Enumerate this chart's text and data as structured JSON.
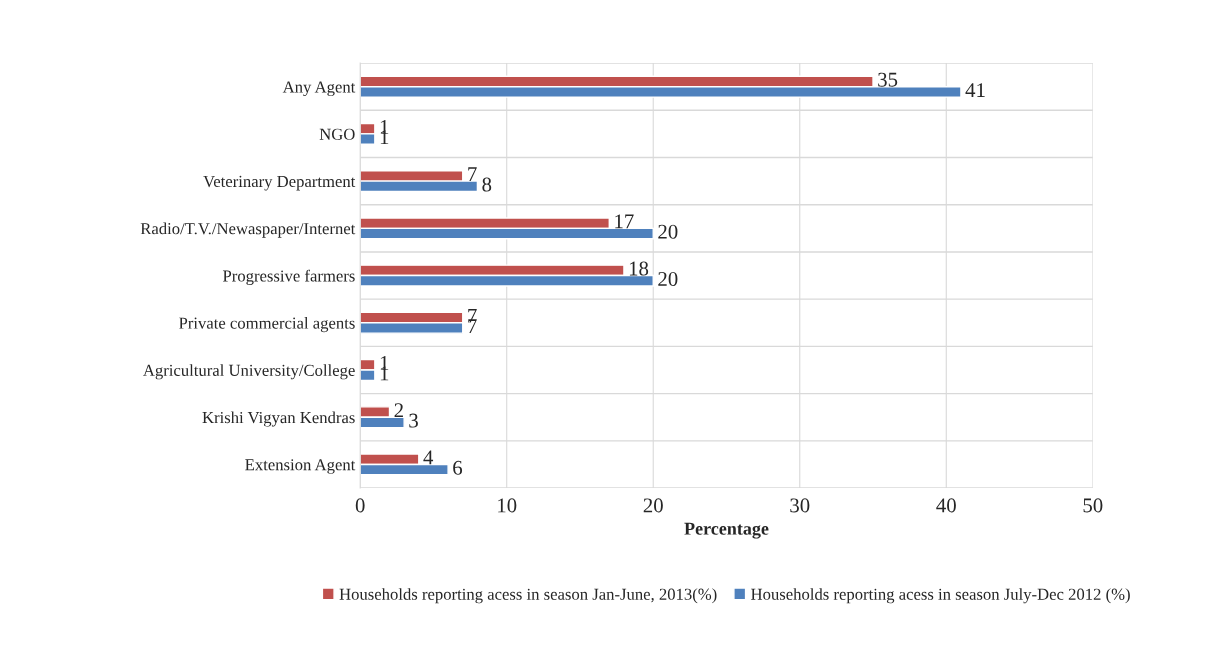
{
  "chart_data": {
    "type": "bar",
    "orientation": "horizontal",
    "xlabel": "Percentage",
    "categories": [
      "Any Agent",
      "NGO",
      "Veterinary Department",
      "Radio/T.V./Newaspaper/Internet",
      "Progressive farmers",
      "Private commercial agents",
      "Agricultural University/College",
      "Krishi Vigyan Kendras",
      "Extension Agent"
    ],
    "series": [
      {
        "name": "Households reporting acess in season Jan-June, 2013(%)",
        "color": "#c0504d",
        "values": [
          35,
          1,
          7,
          17,
          18,
          7,
          1,
          2,
          4
        ]
      },
      {
        "name": "Households reporting acess in season July-Dec 2012 (%)",
        "color": "#4f81bd",
        "values": [
          41,
          1,
          8,
          20,
          20,
          7,
          1,
          3,
          6
        ]
      }
    ],
    "xlim": [
      0,
      50
    ],
    "xticks": [
      0,
      10,
      20,
      30,
      40,
      50
    ],
    "grid": "x",
    "legend": "bottom",
    "data_labels": true
  }
}
